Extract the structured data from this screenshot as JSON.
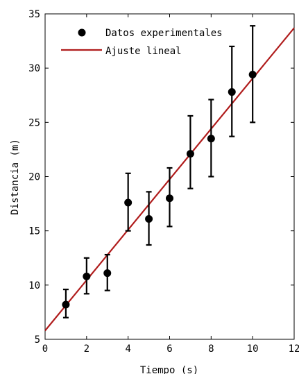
{
  "chart_data": {
    "type": "scatter",
    "xlabel": "Tiempo (s)",
    "ylabel": "Distancia (m)",
    "xlim": [
      0,
      12
    ],
    "ylim": [
      5,
      35
    ],
    "xticks": [
      0,
      2,
      4,
      6,
      8,
      10,
      12
    ],
    "yticks": [
      5,
      10,
      15,
      20,
      25,
      30,
      35
    ],
    "grid": false,
    "legend_position": "top-left",
    "series": [
      {
        "name": "Datos experimentales",
        "kind": "errorbar-markers",
        "color": "#000000",
        "points": [
          {
            "x": 1,
            "y": 8.2,
            "low": 7.0,
            "high": 9.6
          },
          {
            "x": 2,
            "y": 10.8,
            "low": 9.2,
            "high": 12.5
          },
          {
            "x": 3,
            "y": 11.1,
            "low": 9.5,
            "high": 12.8
          },
          {
            "x": 4,
            "y": 17.6,
            "low": 15.0,
            "high": 20.3
          },
          {
            "x": 5,
            "y": 16.1,
            "low": 13.7,
            "high": 18.6
          },
          {
            "x": 6,
            "y": 18.0,
            "low": 15.4,
            "high": 20.8
          },
          {
            "x": 7,
            "y": 22.1,
            "low": 18.9,
            "high": 25.6
          },
          {
            "x": 8,
            "y": 23.5,
            "low": 20.0,
            "high": 27.1
          },
          {
            "x": 9,
            "y": 27.8,
            "low": 23.7,
            "high": 32.0
          },
          {
            "x": 10,
            "y": 29.4,
            "low": 25.0,
            "high": 33.9
          }
        ]
      },
      {
        "name": "Ajuste lineal",
        "kind": "line",
        "color": "#b01c1c",
        "x": [
          0,
          12
        ],
        "y": [
          5.8,
          33.7
        ]
      }
    ]
  }
}
